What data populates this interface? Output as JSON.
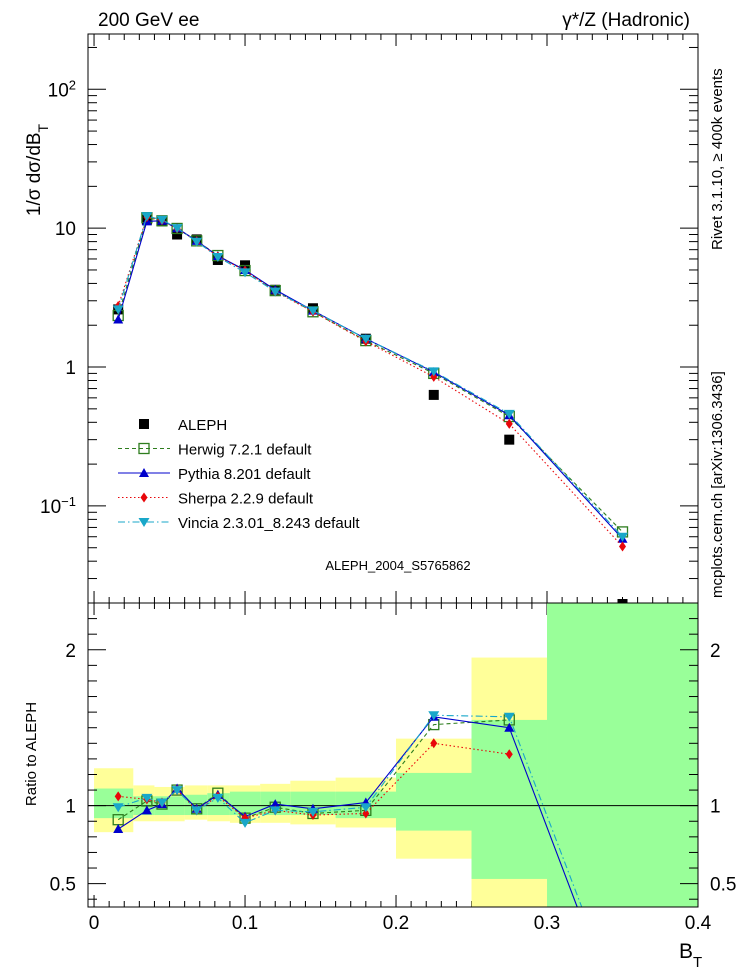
{
  "header": {
    "left": "200 GeV ee",
    "right": "γ*/Z (Hadronic)"
  },
  "side_text": {
    "top": "Rivet 3.1.10, ≥ 400k events",
    "bottom": "mcplots.cern.ch [arXiv:1306.3436]"
  },
  "analysis_label": "ALEPH_2004_S5765862",
  "chart_data": [
    {
      "type": "scatter",
      "panel": "main",
      "ylabel": "1/σ dσ/dB_T",
      "yscale": "log",
      "ylim": [
        0.02,
        250
      ],
      "xlim": [
        -0.004,
        0.4
      ],
      "y_tick_labels": [
        "10^-1",
        "1",
        "10",
        "10^2"
      ],
      "legend_position": "lower-left",
      "series": [
        {
          "name": "ALEPH",
          "marker": "filled-square",
          "color": "#000000",
          "x": [
            0.016,
            0.035,
            0.045,
            0.055,
            0.068,
            0.082,
            0.1,
            0.12,
            0.145,
            0.18,
            0.225,
            0.275,
            0.35
          ],
          "y": [
            2.6,
            11.5,
            11.2,
            9.0,
            8.3,
            5.9,
            5.4,
            3.6,
            2.65,
            1.6,
            0.63,
            0.3,
            0.0
          ]
        },
        {
          "name": "Herwig 7.2.1 default",
          "marker": "open-square",
          "line": "dashed",
          "color": "#2e7d1e",
          "x": [
            0.016,
            0.035,
            0.045,
            0.055,
            0.068,
            0.082,
            0.1,
            0.12,
            0.145,
            0.18,
            0.225,
            0.275,
            0.35
          ],
          "y": [
            2.35,
            11.9,
            11.3,
            9.95,
            8.1,
            6.35,
            4.95,
            3.55,
            2.5,
            1.55,
            0.9,
            0.44,
            0.065
          ]
        },
        {
          "name": "Pythia 8.201 default",
          "marker": "filled-triangle-up",
          "line": "solid",
          "color": "#0000cc",
          "x": [
            0.016,
            0.035,
            0.045,
            0.055,
            0.068,
            0.082,
            0.1,
            0.12,
            0.145,
            0.18,
            0.225,
            0.275,
            0.35
          ],
          "y": [
            2.2,
            11.2,
            11.3,
            10.0,
            8.1,
            6.3,
            5.0,
            3.6,
            2.55,
            1.6,
            0.92,
            0.45,
            0.058
          ]
        },
        {
          "name": "Sherpa 2.2.9 default",
          "marker": "filled-diamond",
          "line": "dotted",
          "color": "#e8060a",
          "x": [
            0.016,
            0.035,
            0.045,
            0.055,
            0.068,
            0.082,
            0.1,
            0.12,
            0.145,
            0.18,
            0.225,
            0.275,
            0.35
          ],
          "y": [
            2.75,
            12.0,
            11.4,
            9.95,
            8.05,
            6.25,
            4.95,
            3.5,
            2.5,
            1.53,
            0.85,
            0.39,
            0.051
          ]
        },
        {
          "name": "Vincia 2.3.01_8.243 default",
          "marker": "filled-triangle-down",
          "line": "dashdot",
          "color": "#19a7c9",
          "x": [
            0.016,
            0.035,
            0.045,
            0.055,
            0.068,
            0.082,
            0.1,
            0.12,
            0.145,
            0.18,
            0.225,
            0.275,
            0.35
          ],
          "y": [
            2.6,
            12.2,
            11.5,
            10.0,
            8.0,
            6.2,
            4.8,
            3.5,
            2.55,
            1.6,
            0.93,
            0.46,
            0.06
          ]
        }
      ]
    },
    {
      "type": "scatter",
      "panel": "ratio",
      "xlabel": "B_T",
      "ylabel": "Ratio to ALEPH",
      "xlim": [
        -0.004,
        0.4
      ],
      "ylim": [
        0.35,
        2.3
      ],
      "x_tick_labels": [
        "0",
        "0.1",
        "0.2",
        "0.3",
        "0.4"
      ],
      "y_tick_labels": [
        "0.5",
        "1",
        "2"
      ],
      "uncertainty_bands": {
        "x_edges": [
          0.0,
          0.026,
          0.04,
          0.05,
          0.06,
          0.075,
          0.09,
          0.11,
          0.13,
          0.16,
          0.2,
          0.25,
          0.3,
          0.4
        ],
        "yellow_low": [
          0.83,
          0.9,
          0.9,
          0.9,
          0.91,
          0.9,
          0.89,
          0.89,
          0.88,
          0.86,
          0.66,
          0.35,
          0.35
        ],
        "yellow_high": [
          1.24,
          1.13,
          1.12,
          1.12,
          1.13,
          1.13,
          1.13,
          1.14,
          1.16,
          1.18,
          1.43,
          1.95,
          2.3
        ],
        "green_low": [
          0.92,
          0.94,
          0.94,
          0.94,
          0.94,
          0.94,
          0.94,
          0.94,
          0.94,
          0.92,
          0.84,
          0.53,
          0.35
        ],
        "green_high": [
          1.11,
          1.06,
          1.06,
          1.06,
          1.07,
          1.08,
          1.09,
          1.09,
          1.09,
          1.09,
          1.21,
          1.55,
          2.3
        ]
      },
      "series": [
        {
          "name": "Herwig 7.2.1 default",
          "x": [
            0.016,
            0.035,
            0.045,
            0.055,
            0.068,
            0.082,
            0.1,
            0.12,
            0.145,
            0.18,
            0.225,
            0.275
          ],
          "y": [
            0.91,
            1.03,
            1.01,
            1.1,
            0.98,
            1.08,
            0.92,
            0.99,
            0.95,
            0.97,
            1.52,
            1.55
          ]
        },
        {
          "name": "Pythia 8.201 default",
          "x": [
            0.016,
            0.035,
            0.045,
            0.055,
            0.068,
            0.082,
            0.1,
            0.12,
            0.145,
            0.18,
            0.225,
            0.275,
            0.32
          ],
          "y": [
            0.85,
            0.97,
            1.01,
            1.11,
            0.98,
            1.07,
            0.93,
            1.01,
            0.98,
            1.02,
            1.57,
            1.5,
            0.35
          ]
        },
        {
          "name": "Sherpa 2.2.9 default",
          "x": [
            0.016,
            0.035,
            0.045,
            0.055,
            0.068,
            0.082,
            0.1,
            0.12,
            0.145,
            0.18,
            0.225,
            0.275
          ],
          "y": [
            1.06,
            1.04,
            1.02,
            1.1,
            0.97,
            1.06,
            0.92,
            0.97,
            0.94,
            0.95,
            1.4,
            1.33
          ]
        },
        {
          "name": "Vincia 2.3.01_8.243 default",
          "x": [
            0.016,
            0.035,
            0.045,
            0.055,
            0.068,
            0.082,
            0.1,
            0.12,
            0.145,
            0.18,
            0.225,
            0.275,
            0.323
          ],
          "y": [
            0.99,
            1.05,
            1.02,
            1.1,
            0.97,
            1.05,
            0.89,
            0.97,
            0.96,
            0.99,
            1.58,
            1.57,
            0.35
          ]
        }
      ]
    }
  ]
}
